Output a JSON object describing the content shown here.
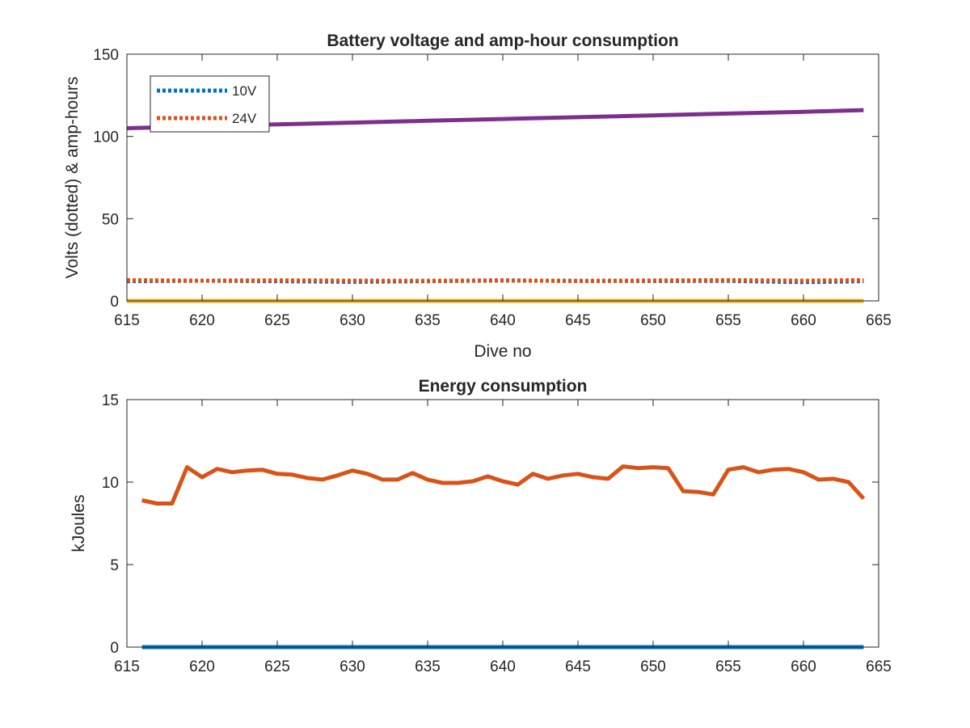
{
  "chart_data": [
    {
      "type": "line",
      "title": "Battery voltage and amp-hour consumption",
      "xlabel": "Dive no",
      "ylabel": "Volts (dotted) & amp-hours",
      "xlim": [
        615,
        665
      ],
      "ylim": [
        0,
        150
      ],
      "xticks": [
        615,
        620,
        625,
        630,
        635,
        640,
        645,
        650,
        655,
        660,
        665
      ],
      "yticks": [
        0,
        50,
        100,
        150
      ],
      "grid": false,
      "legend": {
        "placement": "top-left",
        "entries": [
          "10V",
          "24V"
        ]
      },
      "series": [
        {
          "name": "10V",
          "style": "dotted",
          "color": "#0072BD",
          "x": [
            615,
            620,
            625,
            630,
            635,
            640,
            645,
            650,
            655,
            660,
            664
          ],
          "y": [
            12,
            12.3,
            12,
            11.6,
            12,
            12.4,
            12.2,
            12.1,
            12.2,
            11.4,
            12
          ]
        },
        {
          "name": "24V",
          "style": "dotted",
          "color": "#D95319",
          "x": [
            615,
            620,
            625,
            630,
            635,
            640,
            645,
            650,
            655,
            660,
            664
          ],
          "y": [
            12.6,
            12.3,
            12.5,
            12.3,
            12.2,
            12.5,
            12.1,
            12.4,
            12.6,
            12.3,
            12.6
          ]
        },
        {
          "style": "solid",
          "color": "#EDB120",
          "x": [
            615,
            664
          ],
          "y": [
            0,
            0
          ]
        },
        {
          "style": "solid",
          "color": "#7E2F8E",
          "x": [
            615,
            620,
            625,
            630,
            635,
            640,
            645,
            650,
            655,
            660,
            664
          ],
          "y": [
            105,
            106.2,
            107.3,
            108.4,
            109.5,
            110.6,
            111.7,
            112.8,
            113.9,
            115,
            116
          ]
        }
      ]
    },
    {
      "type": "line",
      "title": "Energy consumption",
      "xlabel": "",
      "ylabel": "kJoules",
      "xlim": [
        615,
        665
      ],
      "ylim": [
        0,
        15
      ],
      "xticks": [
        615,
        620,
        625,
        630,
        635,
        640,
        645,
        650,
        655,
        660,
        665
      ],
      "yticks": [
        0,
        5,
        10,
        15
      ],
      "grid": false,
      "series": [
        {
          "style": "solid",
          "color": "#0072BD",
          "x": [
            616,
            664
          ],
          "y": [
            0,
            0
          ]
        },
        {
          "style": "solid",
          "color": "#D95319",
          "x": [
            616,
            617,
            618,
            619,
            620,
            621,
            622,
            623,
            624,
            625,
            626,
            627,
            628,
            629,
            630,
            631,
            632,
            633,
            634,
            635,
            636,
            637,
            638,
            639,
            640,
            641,
            642,
            643,
            644,
            645,
            646,
            647,
            648,
            649,
            650,
            651,
            652,
            653,
            654,
            655,
            656,
            657,
            658,
            659,
            660,
            661,
            662,
            663,
            664
          ],
          "y": [
            8.9,
            8.7,
            8.7,
            10.9,
            10.3,
            10.8,
            10.6,
            10.7,
            10.75,
            10.5,
            10.45,
            10.25,
            10.15,
            10.4,
            10.7,
            10.5,
            10.15,
            10.15,
            10.55,
            10.15,
            9.95,
            9.95,
            10.05,
            10.35,
            10.05,
            9.85,
            10.5,
            10.2,
            10.4,
            10.5,
            10.3,
            10.2,
            10.95,
            10.85,
            10.9,
            10.85,
            9.45,
            9.4,
            9.25,
            10.75,
            10.9,
            10.6,
            10.75,
            10.8,
            10.6,
            10.15,
            10.2,
            10.0,
            9.0
          ]
        }
      ]
    }
  ]
}
